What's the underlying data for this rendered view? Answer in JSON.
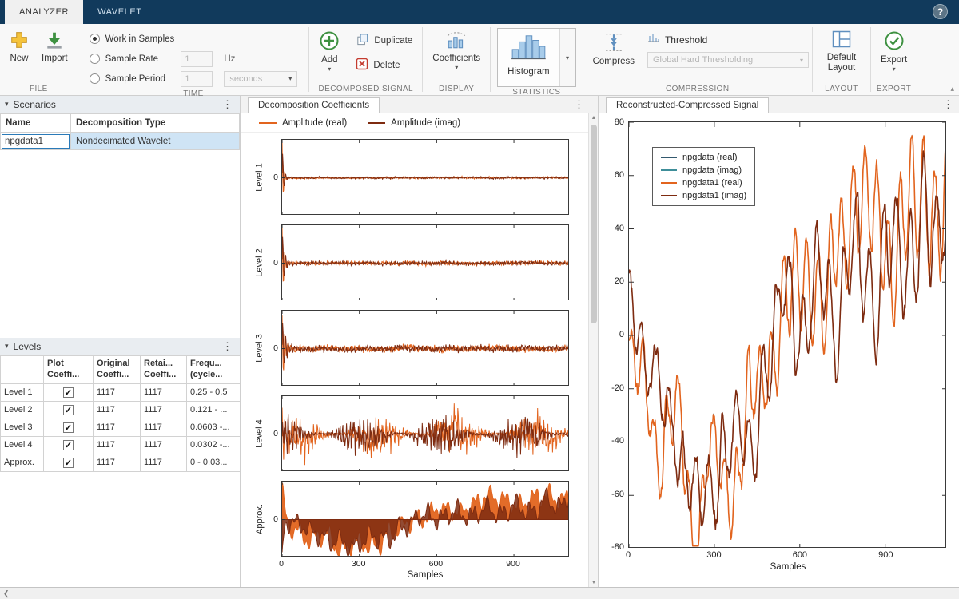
{
  "window": {
    "help_label": "?"
  },
  "tabs": [
    {
      "label": "ANALYZER"
    },
    {
      "label": "WAVELET"
    }
  ],
  "toolstrip": {
    "file": {
      "label": "FILE",
      "new": "New",
      "import": "Import"
    },
    "time": {
      "label": "TIME",
      "work_in_samples": "Work in Samples",
      "sample_rate": "Sample Rate",
      "sample_period": "Sample Period",
      "sample_rate_value": "1",
      "sample_rate_unit": "Hz",
      "sample_period_value": "1",
      "sample_period_unit": "seconds"
    },
    "decomposed": {
      "label": "DECOMPOSED SIGNAL",
      "add": "Add",
      "duplicate": "Duplicate",
      "delete": "Delete"
    },
    "display": {
      "label": "DISPLAY",
      "coefficients": "Coefficients"
    },
    "statistics": {
      "label": "STATISTICS",
      "histogram": "Histogram"
    },
    "compression": {
      "label": "COMPRESSION",
      "compress": "Compress",
      "threshold": "Threshold",
      "threshold_value": "Global Hard Thresholding"
    },
    "layout": {
      "label": "LAYOUT",
      "default_layout": "Default Layout"
    },
    "export": {
      "label": "EXPORT",
      "export": "Export"
    }
  },
  "scenarios": {
    "title": "Scenarios",
    "columns": [
      "Name",
      "Decomposition Type"
    ],
    "rows": [
      {
        "name": "npgdata1",
        "type": "Nondecimated Wavelet"
      }
    ]
  },
  "levels": {
    "title": "Levels",
    "columns": [
      {
        "line1": "",
        "line2": ""
      },
      {
        "line1": "Plot",
        "line2": "Coeffi..."
      },
      {
        "line1": "Original",
        "line2": "Coeffi..."
      },
      {
        "line1": "Retai...",
        "line2": "Coeffi..."
      },
      {
        "line1": "Frequ...",
        "line2": "(cycle..."
      }
    ],
    "rows": [
      {
        "name": "Level 1",
        "plot": true,
        "original": "1117",
        "retained": "1117",
        "freq": "0.25 - 0.5"
      },
      {
        "name": "Level 2",
        "plot": true,
        "original": "1117",
        "retained": "1117",
        "freq": "0.121 - ..."
      },
      {
        "name": "Level 3",
        "plot": true,
        "original": "1117",
        "retained": "1117",
        "freq": "0.0603 -..."
      },
      {
        "name": "Level 4",
        "plot": true,
        "original": "1117",
        "retained": "1117",
        "freq": "0.0302 -..."
      },
      {
        "name": "Approx.",
        "plot": true,
        "original": "1117",
        "retained": "1117",
        "freq": "0 - 0.03..."
      }
    ]
  },
  "decomposition": {
    "title": "Decomposition Coefficients",
    "legend": [
      {
        "label": "Amplitude (real)",
        "color": "#E2641E"
      },
      {
        "label": "Amplitude (imag)",
        "color": "#7E2B10"
      }
    ],
    "subplots": [
      "Level 1",
      "Level 2",
      "Level 3",
      "Level 4",
      "Approx."
    ],
    "ytick": "0",
    "xticks": [
      0,
      300,
      600,
      900
    ],
    "xlabel": "Samples"
  },
  "reconstructed": {
    "title": "Reconstructed-Compressed Signal",
    "legend": [
      {
        "label": "npgdata (real)",
        "color": "#33596E"
      },
      {
        "label": "npgdata (imag)",
        "color": "#3E8E99"
      },
      {
        "label": "npgdata1 (real)",
        "color": "#E2641E"
      },
      {
        "label": "npgdata1 (imag)",
        "color": "#7E2B10"
      }
    ],
    "yticks": [
      80,
      60,
      40,
      20,
      0,
      -20,
      -40,
      -60,
      -80
    ],
    "xticks": [
      0,
      300,
      600,
      900
    ],
    "xlabel": "Samples"
  },
  "chart_data": [
    {
      "type": "line",
      "title": "Decomposition Coefficients",
      "xlabel": "Samples",
      "xlim": [
        0,
        1117
      ],
      "xticks": [
        0,
        300,
        600,
        900
      ],
      "subplots": [
        "Level 1",
        "Level 2",
        "Level 3",
        "Level 4",
        "Approx."
      ],
      "series": [
        "Amplitude (real)",
        "Amplitude (imag)"
      ],
      "grid": false
    },
    {
      "type": "line",
      "title": "Reconstructed-Compressed Signal",
      "xlabel": "Samples",
      "xlim": [
        0,
        1117
      ],
      "ylim": [
        -80,
        80
      ],
      "xticks": [
        0,
        300,
        600,
        900
      ],
      "yticks": [
        -80,
        -60,
        -40,
        -20,
        0,
        20,
        40,
        60,
        80
      ],
      "series": [
        "npgdata (real)",
        "npgdata (imag)",
        "npgdata1 (real)",
        "npgdata1 (imag)"
      ],
      "legend_position": "upper-left",
      "grid": false
    }
  ],
  "signals": {
    "n": 1117,
    "main": {
      "orange": [
        [
          0,
          -8
        ],
        [
          50,
          -22
        ],
        [
          110,
          -42
        ],
        [
          170,
          -30
        ],
        [
          230,
          -72
        ],
        [
          290,
          -48
        ],
        [
          360,
          -58
        ],
        [
          430,
          -25
        ],
        [
          500,
          -5
        ],
        [
          560,
          8
        ],
        [
          620,
          22
        ],
        [
          680,
          12
        ],
        [
          740,
          35
        ],
        [
          800,
          52
        ],
        [
          860,
          45
        ],
        [
          920,
          30
        ],
        [
          980,
          48
        ],
        [
          1040,
          58
        ],
        [
          1090,
          42
        ],
        [
          1117,
          50
        ]
      ],
      "brown": [
        [
          0,
          12
        ],
        [
          60,
          -8
        ],
        [
          130,
          -28
        ],
        [
          200,
          -50
        ],
        [
          270,
          -62
        ],
        [
          340,
          -38
        ],
        [
          410,
          -45
        ],
        [
          480,
          -12
        ],
        [
          550,
          15
        ],
        [
          610,
          0
        ],
        [
          670,
          20
        ],
        [
          730,
          8
        ],
        [
          790,
          28
        ],
        [
          850,
          15
        ],
        [
          910,
          35
        ],
        [
          970,
          22
        ],
        [
          1030,
          45
        ],
        [
          1080,
          28
        ],
        [
          1117,
          58
        ]
      ]
    },
    "deco": [
      {
        "noise": 0.015,
        "spike": 0.95,
        "tau": 6,
        "env": false,
        "approx": false
      },
      {
        "noise": 0.03,
        "spike": 0.95,
        "tau": 9,
        "env": false,
        "approx": false
      },
      {
        "noise": 0.05,
        "spike": 0.85,
        "tau": 14,
        "env": false,
        "approx": false
      },
      {
        "noise": 0.16,
        "spike": 0.55,
        "tau": 25,
        "env": true,
        "approx": false
      },
      {
        "noise": 0.1,
        "spike": 0.9,
        "tau": 9,
        "env": false,
        "approx": true
      }
    ]
  }
}
